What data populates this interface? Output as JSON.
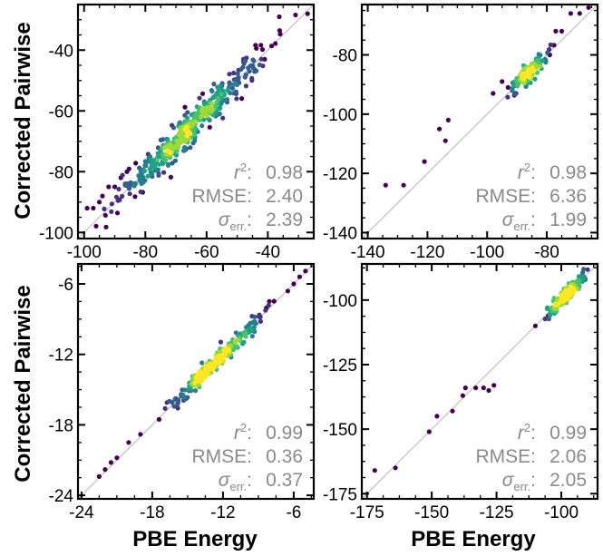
{
  "colors": {
    "identity_line": "#c0c0c0",
    "stats_text": "#8a8a8a",
    "frame": "#000000"
  },
  "shared_labels": {
    "xlabel": "PBE Energy",
    "ylabel": "Corrected Pairwise"
  },
  "stat_labels": {
    "r2_base": "r",
    "r2_sup": "2",
    "rmse": "RMSE",
    "sigma_base": "σ",
    "sigma_sub": "err.",
    "colon": ":"
  },
  "chart_data": [
    {
      "type": "scatter",
      "position": "top-left",
      "xlabel": "",
      "ylabel": "Corrected Pairwise",
      "xlim": [
        -102,
        -25
      ],
      "ylim": [
        -102,
        -25
      ],
      "xticks": [
        -100,
        -80,
        -60,
        -40
      ],
      "xtick_labels": [
        "-100",
        "-80",
        "-60",
        "-40"
      ],
      "yticks": [
        -100,
        -80,
        -60,
        -40
      ],
      "ytick_labels": [
        "-100",
        "-80",
        "-60",
        "-40"
      ],
      "stats": {
        "r2": "0.98",
        "rmse": "2.40",
        "sigma": "2.39"
      },
      "density": {
        "xmin": -100,
        "xmax": -30,
        "spread": 3.0,
        "n": 420,
        "tail": [
          [
            -99,
            -92
          ],
          [
            -97,
            -92
          ],
          [
            -95,
            -90
          ],
          [
            -94,
            -88
          ],
          [
            -92,
            -85
          ],
          [
            -90,
            -85
          ],
          [
            -88,
            -82
          ],
          [
            -86,
            -80
          ],
          [
            -27,
            -28
          ]
        ]
      }
    },
    {
      "type": "scatter",
      "position": "top-right",
      "xlabel": "",
      "ylabel": "",
      "xlim": [
        -142,
        -63
      ],
      "ylim": [
        -142,
        -63
      ],
      "xticks": [
        -140,
        -120,
        -100,
        -80
      ],
      "xtick_labels": [
        "-140",
        "-120",
        "-100",
        "-80"
      ],
      "yticks": [
        -140,
        -120,
        -100,
        -80
      ],
      "ytick_labels": [
        "-140",
        "-120",
        "-100",
        "-80"
      ],
      "stats": {
        "r2": "0.98",
        "rmse": "6.36",
        "sigma": "1.99"
      },
      "density": {
        "xmin": -96,
        "xmax": -76,
        "spread": 2.0,
        "n": 95,
        "tail": [
          [
            -134,
            -124
          ],
          [
            -128,
            -124
          ],
          [
            -121,
            -116
          ],
          [
            -116,
            -105
          ],
          [
            -114,
            -109
          ],
          [
            -113,
            -102
          ],
          [
            -98,
            -93
          ],
          [
            -95,
            -89
          ],
          [
            -93,
            -91
          ],
          [
            -90,
            -88
          ],
          [
            -77,
            -72
          ],
          [
            -75,
            -72
          ],
          [
            -72,
            -66
          ],
          [
            -69,
            -66
          ],
          [
            -66,
            -64
          ],
          [
            -71,
            -62
          ],
          [
            -79,
            -80
          ]
        ]
      }
    },
    {
      "type": "scatter",
      "position": "bottom-left",
      "xlabel": "PBE Energy",
      "ylabel": "Corrected Pairwise",
      "xlim": [
        -24.3,
        -4.3
      ],
      "ylim": [
        -24.3,
        -4.3
      ],
      "xticks": [
        -24,
        -18,
        -12,
        -6
      ],
      "xtick_labels": [
        "-24",
        "-18",
        "-12",
        "-6"
      ],
      "yticks": [
        -24,
        -18,
        -12,
        -6
      ],
      "ytick_labels": [
        "-24",
        "-18",
        "-12",
        "-6"
      ],
      "stats": {
        "r2": "0.99",
        "rmse": "0.36",
        "sigma": "0.37"
      },
      "density": {
        "xmin": -18,
        "xmax": -7,
        "spread": 0.35,
        "n": 260,
        "tail": [
          [
            -22.5,
            -22.4
          ],
          [
            -22,
            -21.8
          ],
          [
            -21.5,
            -21.2
          ],
          [
            -21,
            -20.8
          ],
          [
            -20,
            -19.5
          ],
          [
            -19,
            -18.8
          ],
          [
            -6.5,
            -6.6
          ],
          [
            -6,
            -6
          ],
          [
            -5.5,
            -5.4
          ],
          [
            -5,
            -4.9
          ]
        ]
      }
    },
    {
      "type": "scatter",
      "position": "bottom-right",
      "xlabel": "PBE Energy",
      "ylabel": "",
      "xlim": [
        -177,
        -86
      ],
      "ylim": [
        -177,
        -86
      ],
      "xticks": [
        -175,
        -150,
        -125,
        -100
      ],
      "xtick_labels": [
        "-175",
        "-150",
        "-125",
        "-100"
      ],
      "yticks": [
        -175,
        -150,
        -125,
        -100
      ],
      "ytick_labels": [
        "-175",
        "-150",
        "-125",
        "-100"
      ],
      "stats": {
        "r2": "0.99",
        "rmse": "2.06",
        "sigma": "2.05"
      },
      "density": {
        "xmin": -110,
        "xmax": -87,
        "spread": 1.6,
        "n": 140,
        "tail": [
          [
            -172,
            -166
          ],
          [
            -164,
            -165
          ],
          [
            -151,
            -151
          ],
          [
            -148,
            -145
          ],
          [
            -142,
            -143
          ],
          [
            -138,
            -137
          ],
          [
            -137,
            -134
          ],
          [
            -133,
            -134
          ],
          [
            -130,
            -134
          ],
          [
            -128,
            -135
          ],
          [
            -126,
            -133
          ],
          [
            -110,
            -110
          ],
          [
            -105,
            -106
          ]
        ]
      }
    }
  ]
}
